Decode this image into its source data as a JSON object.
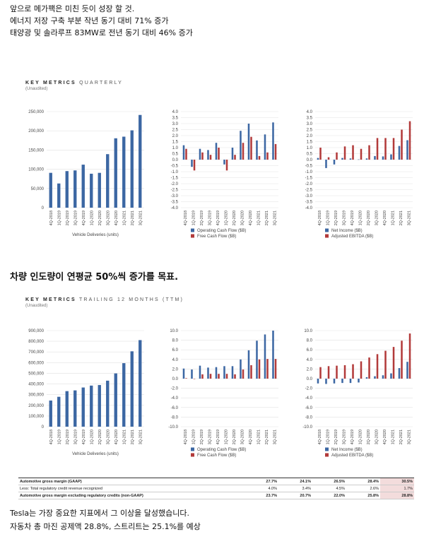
{
  "intro_lines": [
    "앞으로 메가팩은 미친 듯이 성장 할 것.",
    "에너지 저장 구축 부분 작년 동기 대비 71% 증가",
    "태양광 및 솔라루프 83MW로 전년 동기 대비 46% 증가"
  ],
  "section1": {
    "title_bold": "KEY METRICS",
    "title_light": "QUARTERLY",
    "subtitle": "(Unaudited)"
  },
  "mid_heading": "차량 인도량이 연평균 50%씩 증가를 목표.",
  "section2": {
    "title_bold": "KEY METRICS",
    "title_light": "TRAILING 12 MONTHS (TTM)",
    "subtitle": "(Unaudited)"
  },
  "colors": {
    "blue": "#3c67a3",
    "red": "#b23a3a",
    "grid": "#e2e2e2"
  },
  "chart_data": [
    {
      "id": "q_deliveries",
      "type": "bar",
      "categories": [
        "4Q-2018",
        "1Q-2019",
        "2Q-2019",
        "3Q-2019",
        "4Q-2019",
        "1Q-2020",
        "2Q-2020",
        "3Q-2020",
        "4Q-2020",
        "1Q-2021",
        "2Q-2021",
        "3Q-2021"
      ],
      "series": [
        {
          "values": [
            90700,
            63000,
            95200,
            97000,
            112000,
            88400,
            90650,
            139300,
            180570,
            184800,
            201250,
            241300
          ],
          "color": "#3c67a3"
        }
      ],
      "yticks": [
        0,
        50000,
        100000,
        150000,
        200000,
        250000
      ],
      "ytick_labels": [
        "0",
        "50,000",
        "100,000",
        "150,000",
        "200,000",
        "250,000"
      ],
      "ylim": [
        0,
        250000
      ],
      "xlabel": "Vehicle Deliveries (units)"
    },
    {
      "id": "q_cashflow",
      "type": "bar",
      "categories": [
        "4Q-2018",
        "1Q-2019",
        "2Q-2019",
        "3Q-2019",
        "4Q-2019",
        "1Q-2020",
        "2Q-2020",
        "3Q-2020",
        "4Q-2020",
        "1Q-2021",
        "2Q-2021",
        "3Q-2021"
      ],
      "series": [
        {
          "name": "Operating Cash Flow ($B)",
          "values": [
            1.2,
            -0.6,
            0.9,
            0.8,
            1.4,
            -0.4,
            1.0,
            2.4,
            3.0,
            1.6,
            2.1,
            3.1
          ],
          "color": "#3c67a3"
        },
        {
          "name": "Free Cash Flow ($B)",
          "values": [
            0.9,
            -0.9,
            0.6,
            0.4,
            1.0,
            -0.9,
            0.4,
            1.4,
            1.9,
            0.3,
            0.6,
            1.3
          ],
          "color": "#b23a3a"
        }
      ],
      "yticks": [
        -4,
        -3.5,
        -3,
        -2.5,
        -2,
        -1.5,
        -1,
        -0.5,
        0,
        0.5,
        1,
        1.5,
        2,
        2.5,
        3,
        3.5,
        4
      ],
      "ytick_labels": [
        "-4.0",
        "-3.5",
        "-3.0",
        "-2.5",
        "-2.0",
        "-1.5",
        "-1.0",
        "-0.5",
        "0.0",
        "0.5",
        "1.0",
        "1.5",
        "2.0",
        "2.5",
        "3.0",
        "3.5",
        "4.0"
      ],
      "ylim": [
        -4,
        4
      ],
      "legend": "bottom"
    },
    {
      "id": "q_income",
      "type": "bar",
      "categories": [
        "4Q-2018",
        "1Q-2019",
        "2Q-2019",
        "3Q-2019",
        "4Q-2019",
        "1Q-2020",
        "2Q-2020",
        "3Q-2020",
        "4Q-2020",
        "1Q-2021",
        "2Q-2021",
        "3Q-2021"
      ],
      "series": [
        {
          "name": "Net Income ($B)",
          "values": [
            0.14,
            -0.7,
            -0.4,
            0.14,
            0.1,
            0.02,
            0.1,
            0.3,
            0.27,
            0.44,
            1.14,
            1.62
          ],
          "color": "#3c67a3"
        },
        {
          "name": "Adjusted EBITDA ($B)",
          "values": [
            1.0,
            0.2,
            0.6,
            1.1,
            1.2,
            0.9,
            1.2,
            1.8,
            1.8,
            1.8,
            2.5,
            3.2
          ],
          "color": "#b23a3a"
        }
      ],
      "yticks": [
        -4,
        -3.5,
        -3,
        -2.5,
        -2,
        -1.5,
        -1,
        -0.5,
        0,
        0.5,
        1,
        1.5,
        2,
        2.5,
        3,
        3.5,
        4
      ],
      "ytick_labels": [
        "-4.0",
        "-3.5",
        "-3.0",
        "-2.5",
        "-2.0",
        "-1.5",
        "-1.0",
        "-0.5",
        "0.0",
        "0.5",
        "1.0",
        "1.5",
        "2.0",
        "2.5",
        "3.0",
        "3.5",
        "4.0"
      ],
      "ylim": [
        -4,
        4
      ],
      "legend": "bottom"
    },
    {
      "id": "ttm_deliveries",
      "type": "bar",
      "categories": [
        "4Q-2018",
        "1Q-2019",
        "2Q-2019",
        "3Q-2019",
        "4Q-2019",
        "1Q-2020",
        "2Q-2020",
        "3Q-2020",
        "4Q-2020",
        "1Q-2021",
        "2Q-2021",
        "3Q-2021"
      ],
      "series": [
        {
          "values": [
            245000,
            280000,
            333000,
            340000,
            367000,
            385000,
            390000,
            431000,
            499000,
            595000,
            706000,
            811000
          ],
          "color": "#3c67a3"
        }
      ],
      "yticks": [
        0,
        100000,
        200000,
        300000,
        400000,
        500000,
        600000,
        700000,
        800000,
        900000
      ],
      "ytick_labels": [
        "0",
        "100,000",
        "200,000",
        "300,000",
        "400,000",
        "500,000",
        "600,000",
        "700,000",
        "800,000",
        "900,000"
      ],
      "ylim": [
        0,
        900000
      ],
      "xlabel": "Vehicle Deliveries (units)"
    },
    {
      "id": "ttm_cashflow",
      "type": "bar",
      "categories": [
        "4Q-2018",
        "1Q-2019",
        "2Q-2019",
        "3Q-2019",
        "4Q-2019",
        "1Q-2020",
        "2Q-2020",
        "3Q-2020",
        "4Q-2020",
        "1Q-2021",
        "2Q-2021",
        "3Q-2021"
      ],
      "series": [
        {
          "name": "Operating Cash Flow ($B)",
          "values": [
            2.1,
            1.9,
            2.7,
            2.3,
            2.4,
            2.6,
            2.6,
            4.0,
            5.9,
            7.9,
            9.2,
            10.0
          ],
          "color": "#3c67a3"
        },
        {
          "name": "Free Cash Flow ($B)",
          "values": [
            0.1,
            0.0,
            0.9,
            1.0,
            1.0,
            1.0,
            0.9,
            1.9,
            2.8,
            4.0,
            4.1,
            4.1
          ],
          "color": "#b23a3a"
        }
      ],
      "yticks": [
        -10,
        -8,
        -6,
        -4,
        -2,
        0,
        2,
        4,
        6,
        8,
        10
      ],
      "ytick_labels": [
        "-10.0",
        "-8.0",
        "-6.0",
        "-4.0",
        "-2.0",
        "0.0",
        "2.0",
        "4.0",
        "6.0",
        "8.0",
        "10.0"
      ],
      "ylim": [
        -10,
        10
      ],
      "legend": "bottom"
    },
    {
      "id": "ttm_income",
      "type": "bar",
      "categories": [
        "4Q-2018",
        "1Q-2019",
        "2Q-2019",
        "3Q-2019",
        "4Q-2019",
        "1Q-2020",
        "2Q-2020",
        "3Q-2020",
        "4Q-2020",
        "1Q-2021",
        "2Q-2021",
        "3Q-2021"
      ],
      "series": [
        {
          "name": "Net Income ($B)",
          "values": [
            -1.0,
            -1.1,
            -1.0,
            -0.9,
            -0.9,
            -0.8,
            0.3,
            0.5,
            0.7,
            1.1,
            2.2,
            3.5
          ],
          "color": "#3c67a3"
        },
        {
          "name": "Adjusted EBITDA ($B)",
          "values": [
            2.4,
            2.6,
            2.7,
            2.8,
            3.0,
            3.6,
            4.4,
            5.1,
            5.8,
            6.6,
            7.9,
            9.4
          ],
          "color": "#b23a3a"
        }
      ],
      "yticks": [
        -10,
        -8,
        -6,
        -4,
        -2,
        0,
        2,
        4,
        6,
        8,
        10
      ],
      "ytick_labels": [
        "-10.0",
        "-8.0",
        "-6.0",
        "-4.0",
        "-2.0",
        "0.0",
        "2.0",
        "4.0",
        "6.0",
        "8.0",
        "10.0"
      ],
      "ylim": [
        -10,
        10
      ],
      "legend": "bottom"
    }
  ],
  "metrics_table": {
    "rows": [
      {
        "label": "Automotive gross margin (GAAP)",
        "bold": true,
        "values": [
          "27.7%",
          "24.1%",
          "26.5%",
          "28.4%",
          "30.5%"
        ]
      },
      {
        "label": "Less: Total regulatory credit revenue recognized",
        "bold": false,
        "values": [
          "4.0%",
          "3.4%",
          "4.5%",
          "2.6%",
          "1.7%"
        ]
      },
      {
        "label": "Automotive gross margin excluding regulatory credits (non-GAAP)",
        "bold": true,
        "values": [
          "23.7%",
          "20.7%",
          "22.0%",
          "25.8%",
          "28.8%"
        ]
      }
    ]
  },
  "outro_lines": [
    "Tesla는 가장 중요한 지표에서 그 이상을 달성했습니다.",
    "자동차 총 마진 공제액 28.8%, 스트리트는 25.1%를 예상"
  ]
}
